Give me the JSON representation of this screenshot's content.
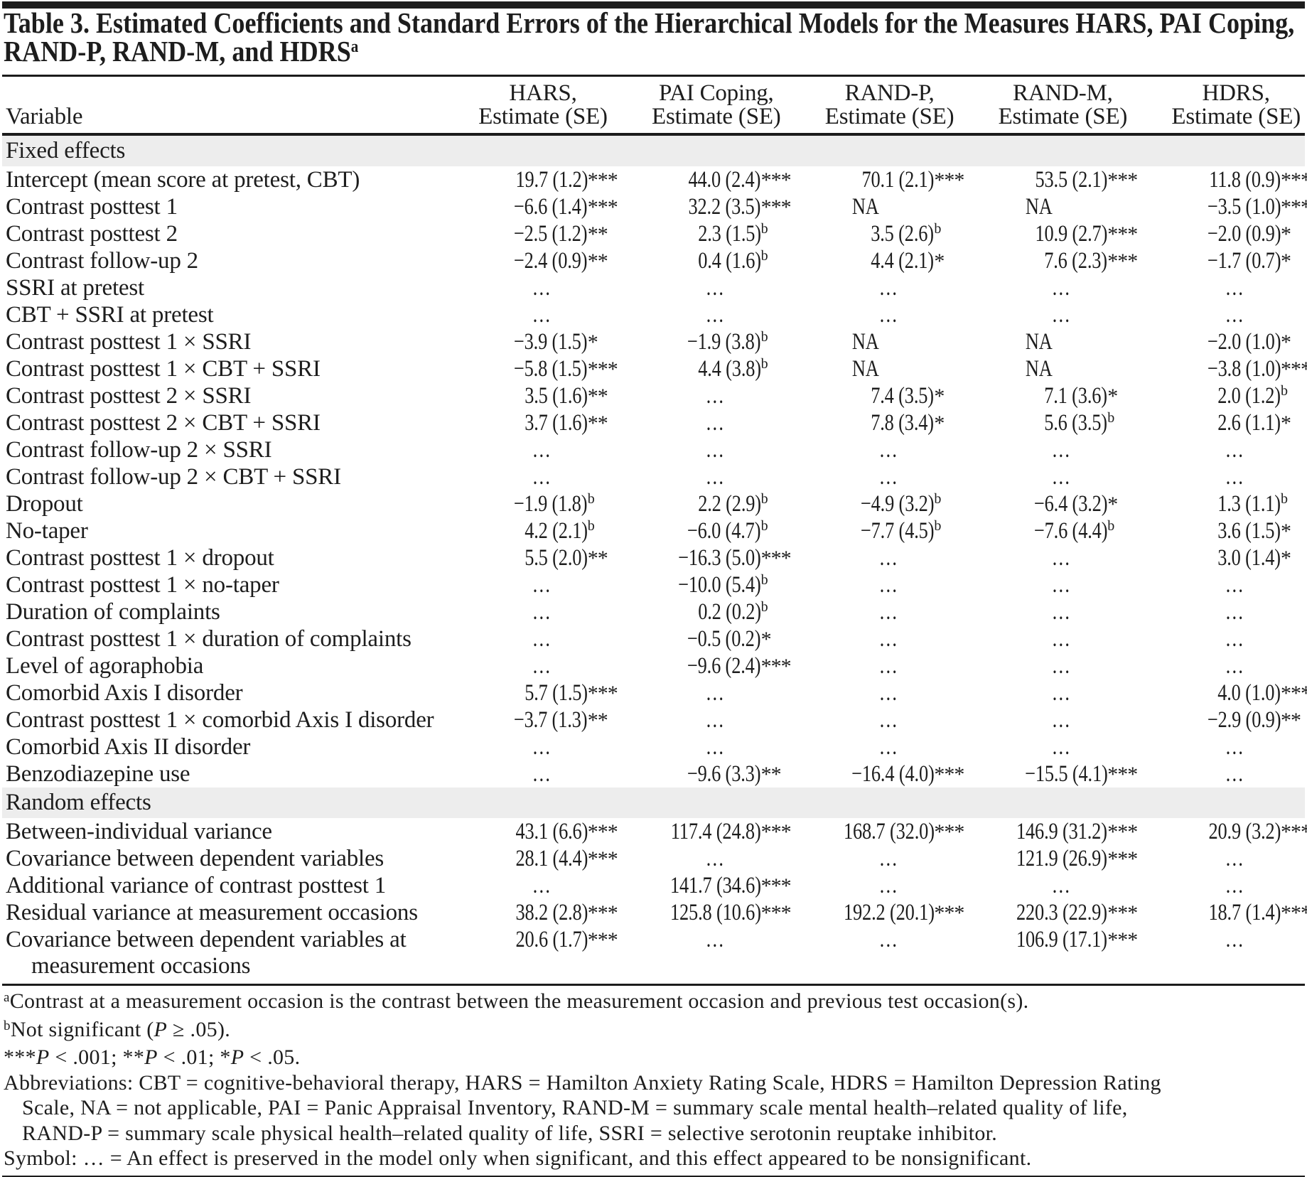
{
  "title": {
    "line1": "Table 3. Estimated Coefficients and Standard Errors of the Hierarchical Models for the Measures HARS, PAI Coping,",
    "line2": "RAND-P, RAND-M, and HDRS",
    "superscript": "a"
  },
  "header": {
    "variable": "Variable",
    "columns": [
      {
        "measure": "HARS,",
        "sub": "Estimate (SE)"
      },
      {
        "measure": "PAI Coping,",
        "sub": "Estimate (SE)"
      },
      {
        "measure": "RAND-P,",
        "sub": "Estimate (SE)"
      },
      {
        "measure": "RAND-M,",
        "sub": "Estimate (SE)"
      },
      {
        "measure": "HDRS,",
        "sub": "Estimate (SE)"
      }
    ]
  },
  "sections": [
    {
      "label": "Fixed effects",
      "rows": [
        {
          "label": "Intercept (mean score at pretest, CBT)",
          "cells": [
            "19.7 (1.2)***",
            "44.0 (2.4)***",
            "70.1 (2.1)***",
            "53.5 (2.1)***",
            "11.8 (0.9)***"
          ]
        },
        {
          "label": "Contrast posttest 1",
          "cells": [
            "−6.6 (1.4)***",
            "32.2 (3.5)***",
            "NA",
            "NA",
            "−3.5 (1.0)***"
          ]
        },
        {
          "label": "Contrast posttest 2",
          "cells": [
            "−2.5 (1.2)**",
            "2.3 (1.5)b",
            "3.5 (2.6)b",
            "10.9 (2.7)***",
            "−2.0 (0.9)*"
          ]
        },
        {
          "label": "Contrast follow-up 2",
          "cells": [
            "−2.4 (0.9)**",
            "0.4 (1.6)b",
            "4.4 (2.1)*",
            "7.6 (2.3)***",
            "−1.7 (0.7)*"
          ]
        },
        {
          "label": "SSRI at pretest",
          "cells": [
            "…",
            "…",
            "…",
            "…",
            "…"
          ]
        },
        {
          "label": "CBT + SSRI at pretest",
          "cells": [
            "…",
            "…",
            "…",
            "…",
            "…"
          ]
        },
        {
          "label": "Contrast posttest 1 × SSRI",
          "cells": [
            "−3.9 (1.5)*",
            "−1.9 (3.8)b",
            "NA",
            "NA",
            "−2.0 (1.0)*"
          ]
        },
        {
          "label": "Contrast posttest 1 × CBT + SSRI",
          "cells": [
            "−5.8 (1.5)***",
            "4.4 (3.8)b",
            "NA",
            "NA",
            "−3.8 (1.0)***"
          ]
        },
        {
          "label": "Contrast posttest 2 × SSRI",
          "cells": [
            "3.5 (1.6)**",
            "…",
            "7.4 (3.5)*",
            "7.1 (3.6)*",
            "2.0 (1.2)b"
          ]
        },
        {
          "label": "Contrast posttest 2 × CBT + SSRI",
          "cells": [
            "3.7 (1.6)**",
            "…",
            "7.8 (3.4)*",
            "5.6 (3.5)b",
            "2.6 (1.1)*"
          ]
        },
        {
          "label": "Contrast follow-up 2 × SSRI",
          "cells": [
            "…",
            "…",
            "…",
            "…",
            "…"
          ]
        },
        {
          "label": "Contrast follow-up 2 × CBT + SSRI",
          "cells": [
            "…",
            "…",
            "…",
            "…",
            "…"
          ]
        },
        {
          "label": "Dropout",
          "cells": [
            "−1.9 (1.8)b",
            "2.2 (2.9)b",
            "−4.9 (3.2)b",
            "−6.4 (3.2)*",
            "1.3 (1.1)b"
          ]
        },
        {
          "label": "No-taper",
          "cells": [
            "4.2 (2.1)b",
            "−6.0 (4.7)b",
            "−7.7 (4.5)b",
            "−7.6 (4.4)b",
            "3.6 (1.5)*"
          ]
        },
        {
          "label": "Contrast posttest 1 × dropout",
          "cells": [
            "5.5 (2.0)**",
            "−16.3 (5.0)***",
            "…",
            "…",
            "3.0 (1.4)*"
          ]
        },
        {
          "label": "Contrast posttest 1 × no-taper",
          "cells": [
            "…",
            "−10.0 (5.4)b",
            "…",
            "…",
            "…"
          ]
        },
        {
          "label": "Duration of complaints",
          "cells": [
            "…",
            "0.2 (0.2)b",
            "…",
            "…",
            "…"
          ]
        },
        {
          "label": "Contrast posttest 1 × duration of complaints",
          "cells": [
            "…",
            "−0.5 (0.2)*",
            "…",
            "…",
            "…"
          ]
        },
        {
          "label": "Level of agoraphobia",
          "cells": [
            "…",
            "−9.6 (2.4)***",
            "…",
            "…",
            "…"
          ]
        },
        {
          "label": "Comorbid Axis I disorder",
          "cells": [
            "5.7 (1.5)***",
            "…",
            "…",
            "…",
            "4.0 (1.0)***"
          ]
        },
        {
          "label": "Contrast posttest 1 × comorbid Axis I disorder",
          "cells": [
            "−3.7 (1.3)**",
            "…",
            "…",
            "…",
            "−2.9 (0.9)**"
          ]
        },
        {
          "label": "Comorbid Axis II disorder",
          "cells": [
            "…",
            "…",
            "…",
            "…",
            "…"
          ]
        },
        {
          "label": "Benzodiazepine use",
          "cells": [
            "…",
            "−9.6 (3.3)**",
            "−16.4 (4.0)***",
            "−15.5 (4.1)***",
            "…"
          ]
        }
      ]
    },
    {
      "label": "Random effects",
      "rows": [
        {
          "label": "Between-individual variance",
          "cells": [
            "43.1 (6.6)***",
            "117.4 (24.8)***",
            "168.7 (32.0)***",
            "146.9 (31.2)***",
            "20.9 (3.2)***"
          ]
        },
        {
          "label": "Covariance between dependent variables",
          "cells": [
            "28.1 (4.4)***",
            "…",
            "…",
            "121.9 (26.9)***",
            "…"
          ]
        },
        {
          "label": "Additional variance of contrast posttest 1",
          "cells": [
            "…",
            "141.7 (34.6)***",
            "…",
            "…",
            "…"
          ]
        },
        {
          "label": "Residual variance at measurement occasions",
          "cells": [
            "38.2 (2.8)***",
            "125.8 (10.6)***",
            "192.2 (20.1)***",
            "220.3 (22.9)***",
            "18.7 (1.4)***"
          ]
        },
        {
          "label": "Covariance between dependent variables at",
          "label_line2": "measurement occasions",
          "cells": [
            "20.6 (1.7)***",
            "…",
            "…",
            "106.9 (17.1)***",
            "…"
          ]
        }
      ]
    }
  ],
  "footnotes": {
    "a": {
      "sup": "a",
      "text": "Contrast at a measurement occasion is the contrast between the measurement occasion and previous test occasion(s)."
    },
    "b": {
      "sup": "b",
      "segments": [
        {
          "t": "Not significant ("
        },
        {
          "t": "P",
          "i": true
        },
        {
          "t": " ≥ .05)."
        }
      ]
    },
    "significance": {
      "segments": [
        {
          "t": "***"
        },
        {
          "t": "P",
          "i": true
        },
        {
          "t": " < .001; "
        },
        {
          "t": "**"
        },
        {
          "t": "P",
          "i": true
        },
        {
          "t": " < .01; "
        },
        {
          "t": "*"
        },
        {
          "t": "P",
          "i": true
        },
        {
          "t": " < .05."
        }
      ]
    },
    "abbreviations": {
      "lines": [
        "Abbreviations: CBT = cognitive-behavioral therapy, HARS = Hamilton Anxiety Rating Scale, HDRS = Hamilton Depression Rating",
        "Scale, NA = not applicable, PAI = Panic Appraisal Inventory, RAND-M = summary scale mental health–related quality of life,",
        "RAND-P = summary scale physical health–related quality of life, SSRI = selective serotonin reuptake inhibitor."
      ]
    },
    "symbol": {
      "text": "Symbol: … = An effect is preserved in the model only when significant, and this effect appeared to be nonsignificant."
    }
  }
}
